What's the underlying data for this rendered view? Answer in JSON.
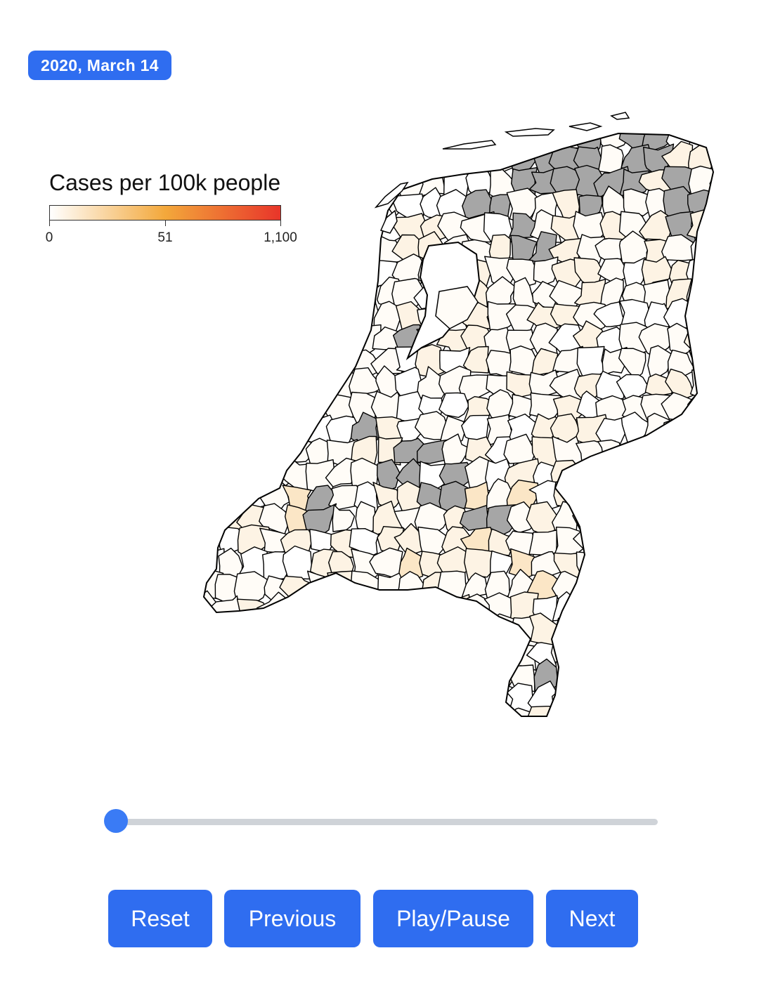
{
  "date_badge": "2020, March 14",
  "legend": {
    "title": "Cases per 100k people",
    "ticks": [
      "0",
      "51",
      "1,100"
    ],
    "color_low": "#ffffff",
    "color_mid": "#f3a83b",
    "color_high": "#e8352a"
  },
  "map": {
    "no_data_color": "#a6a6a6",
    "border_color": "#000000",
    "fill_colors": [
      "#fffcf7",
      "#fdf3e4",
      "#fbe6c6",
      "#ffffff"
    ]
  },
  "slider": {
    "position": 0
  },
  "controls": {
    "reset_label": "Reset",
    "previous_label": "Previous",
    "play_pause_label": "Play/Pause",
    "next_label": "Next"
  },
  "accent_color": "#2f6df0"
}
